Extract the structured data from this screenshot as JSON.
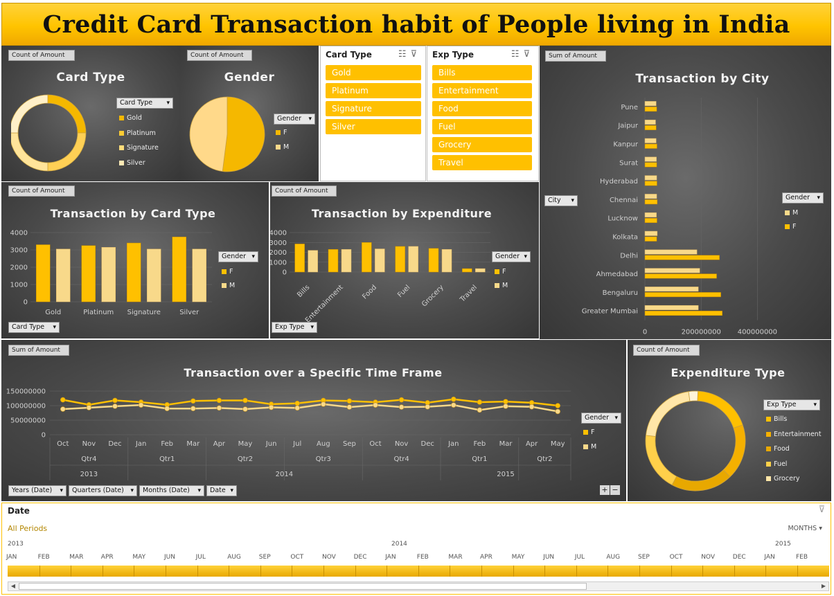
{
  "title": "Credit Card Transaction habit of People living in India",
  "colors": {
    "gold": "#ffc000",
    "gold_dark": "#d69a00",
    "light": "#f8d98a",
    "panel": "#4a4a4a"
  },
  "card_type_panel": {
    "field": "Count of Amount",
    "title": "Card Type",
    "legend_header": "Card Type",
    "legend": [
      "Gold",
      "Platinum",
      "Signature",
      "Silver"
    ]
  },
  "gender_panel": {
    "field": "Count of Amount",
    "title": "Gender",
    "legend_header": "Gender",
    "legend": [
      "F",
      "M"
    ]
  },
  "slicer_card": {
    "header": "Card Type",
    "items": [
      "Gold",
      "Platinum",
      "Signature",
      "Silver"
    ]
  },
  "slicer_exp": {
    "header": "Exp Type",
    "items": [
      "Bills",
      "Entertainment",
      "Food",
      "Fuel",
      "Grocery",
      "Travel"
    ]
  },
  "city_panel": {
    "field": "Sum of Amount",
    "title": "Transaction by City",
    "filter": "City",
    "legend_header": "Gender",
    "legend": [
      "M",
      "F"
    ]
  },
  "card_bar_panel": {
    "field": "Count of Amount",
    "title": "Transaction by Card Type",
    "legend_header": "Gender",
    "legend": [
      "F",
      "M"
    ],
    "filter": "Card Type"
  },
  "exp_bar_panel": {
    "field": "Count of Amount",
    "title": "Transaction by Expenditure",
    "legend_header": "Gender",
    "legend": [
      "F",
      "M"
    ],
    "filter": "Exp Type"
  },
  "time_panel": {
    "field": "Sum of Amount",
    "title": "Transaction over a Specific Time Frame",
    "legend_header": "Gender",
    "legend": [
      "F",
      "M"
    ],
    "filters": [
      "Years (Date)",
      "Quarters (Date)",
      "Months (Date)",
      "Date"
    ],
    "quarters": [
      "Qtr4",
      "Qtr1",
      "Qtr2",
      "Qtr3",
      "Qtr4",
      "Qtr1",
      "Qtr2"
    ],
    "years": [
      "2013",
      "2014",
      "2015"
    ],
    "zoom_buttons": [
      "+",
      "−"
    ]
  },
  "exp_donut_panel": {
    "field": "Count of Amount",
    "title": "Expenditure Type",
    "legend_header": "Exp Type",
    "legend": [
      "Bills",
      "Entertainment",
      "Food",
      "Fuel",
      "Grocery"
    ]
  },
  "timeline": {
    "header": "Date",
    "all_periods": "All Periods",
    "unit": "MONTHS",
    "years": [
      "2013",
      "2014",
      "2015"
    ],
    "months": [
      "JAN",
      "FEB",
      "MAR",
      "APR",
      "MAY",
      "JUN",
      "JUL",
      "AUG",
      "SEP",
      "OCT",
      "NOV",
      "DEC",
      "JAN",
      "FEB",
      "MAR",
      "APR",
      "MAY",
      "JUN",
      "JUL",
      "AUG",
      "SEP",
      "OCT",
      "NOV",
      "DEC",
      "JAN",
      "FEB"
    ]
  },
  "chart_data": [
    {
      "type": "pie",
      "name": "Card Type",
      "donut": true,
      "categories": [
        "Gold",
        "Platinum",
        "Signature",
        "Silver"
      ],
      "values": [
        25,
        25,
        25,
        25
      ]
    },
    {
      "type": "pie",
      "name": "Gender",
      "categories": [
        "F",
        "M"
      ],
      "values": [
        52,
        48
      ]
    },
    {
      "type": "bar",
      "name": "Transaction by Card Type",
      "categories": [
        "Gold",
        "Platinum",
        "Signature",
        "Silver"
      ],
      "series": [
        {
          "name": "F",
          "values": [
            3300,
            3250,
            3400,
            3750
          ]
        },
        {
          "name": "M",
          "values": [
            3050,
            3150,
            3050,
            3050
          ]
        }
      ],
      "ylim": [
        0,
        4000
      ],
      "yticks": [
        0,
        1000,
        2000,
        3000,
        4000
      ]
    },
    {
      "type": "bar",
      "name": "Transaction by Expenditure",
      "categories": [
        "Bills",
        "Entertainment",
        "Food",
        "Fuel",
        "Grocery",
        "Travel"
      ],
      "series": [
        {
          "name": "F",
          "values": [
            2850,
            2300,
            3000,
            2600,
            2400,
            350
          ]
        },
        {
          "name": "M",
          "values": [
            2200,
            2300,
            2350,
            2600,
            2300,
            350
          ]
        }
      ],
      "ylim": [
        0,
        4000
      ],
      "yticks": [
        0,
        1000,
        2000,
        3000,
        4000
      ]
    },
    {
      "type": "bar",
      "orientation": "horizontal",
      "name": "Transaction by City",
      "categories": [
        "Pune",
        "Jaipur",
        "Kanpur",
        "Surat",
        "Hyderabad",
        "Chennai",
        "Lucknow",
        "Kolkata",
        "Delhi",
        "Ahmedabad",
        "Bengaluru",
        "Greater Mumbai"
      ],
      "series": [
        {
          "name": "M",
          "values": [
            40000000,
            38000000,
            40000000,
            41000000,
            42000000,
            42000000,
            41000000,
            44000000,
            185000000,
            195000000,
            190000000,
            190000000
          ]
        },
        {
          "name": "F",
          "values": [
            42000000,
            40000000,
            43000000,
            42000000,
            43000000,
            44000000,
            43000000,
            42000000,
            265000000,
            255000000,
            270000000,
            275000000
          ]
        }
      ],
      "xlim": [
        0,
        500000000
      ],
      "xticks": [
        0,
        200000000,
        400000000
      ]
    },
    {
      "type": "line",
      "name": "Transaction over a Specific Time Frame",
      "categories": [
        "Oct",
        "Nov",
        "Dec",
        "Jan",
        "Feb",
        "Mar",
        "Apr",
        "May",
        "Jun",
        "Jul",
        "Aug",
        "Sep",
        "Oct",
        "Nov",
        "Dec",
        "Jan",
        "Feb",
        "Mar",
        "Apr",
        "May"
      ],
      "series": [
        {
          "name": "F",
          "values": [
            120000000,
            103000000,
            118000000,
            112000000,
            103000000,
            116000000,
            118000000,
            118000000,
            105000000,
            108000000,
            118000000,
            116000000,
            112000000,
            120000000,
            110000000,
            122000000,
            112000000,
            114000000,
            110000000,
            100000000
          ]
        },
        {
          "name": "M",
          "values": [
            88000000,
            93000000,
            98000000,
            102000000,
            90000000,
            90000000,
            92000000,
            88000000,
            94000000,
            92000000,
            105000000,
            95000000,
            102000000,
            95000000,
            96000000,
            102000000,
            85000000,
            98000000,
            96000000,
            80000000
          ]
        }
      ],
      "ylim": [
        0,
        150000000
      ],
      "yticks": [
        0,
        50000000,
        100000000,
        150000000
      ]
    },
    {
      "type": "pie",
      "name": "Expenditure Type",
      "donut": true,
      "categories": [
        "Bills",
        "Entertainment",
        "Food",
        "Fuel",
        "Grocery",
        "Travel"
      ],
      "values": [
        19,
        18,
        20,
        19,
        21,
        3
      ]
    }
  ]
}
